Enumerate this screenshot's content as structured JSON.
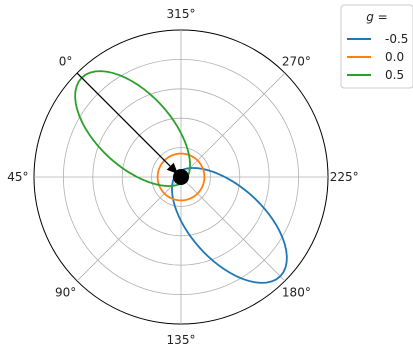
{
  "chart_data": {
    "type": "polar-line",
    "title": "",
    "angular_ticks": [
      "0°",
      "45°",
      "90°",
      "135°",
      "180°",
      "225°",
      "270°",
      "315°"
    ],
    "angular_tick_angles_deg": [
      0,
      45,
      90,
      135,
      180,
      225,
      270,
      315
    ],
    "zero_location": "upper-left",
    "direction": "counterclockwise",
    "radial_gridlines": [
      0.1,
      0.2,
      0.3,
      0.4
    ],
    "rmax": 0.5,
    "grid": true,
    "legend": {
      "title": "g =",
      "placement": "outside-top-right",
      "entries": [
        "-0.5",
        "0.0",
        "0.5"
      ]
    },
    "series": [
      {
        "g": -0.5,
        "color": "#1f77b4",
        "style": "line"
      },
      {
        "g": 0.0,
        "color": "#ff7f0e",
        "style": "line"
      },
      {
        "g": 0.5,
        "color": "#2ca02c",
        "style": "line",
        "arrow_angles_deg": [
          150,
          160,
          170,
          180,
          190,
          200,
          210,
          220,
          230
        ]
      }
    ],
    "incident_arrow": {
      "color": "#000000",
      "from_angle_deg": 0,
      "to": "center"
    },
    "center_marker": {
      "color": "#000000"
    }
  }
}
